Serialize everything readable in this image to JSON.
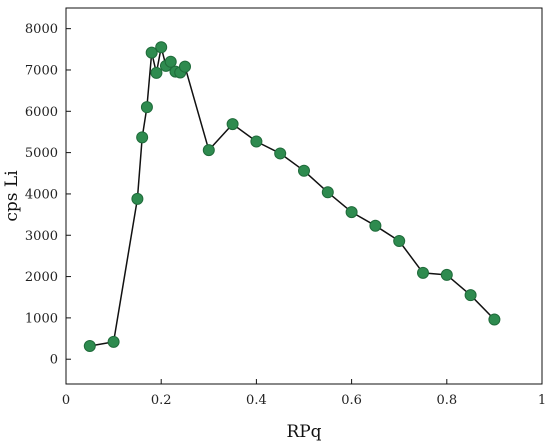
{
  "chart_data": {
    "type": "line",
    "title": "",
    "xlabel": "RPq",
    "ylabel": "cps Li",
    "xlim": [
      0,
      1
    ],
    "ylim": [
      -600,
      8500
    ],
    "x_ticks": [
      0,
      0.2,
      0.4,
      0.6,
      0.8,
      1
    ],
    "x_tick_labels": [
      "0",
      "0.2",
      "0.4",
      "0.6",
      "0.8",
      "1"
    ],
    "y_ticks": [
      0,
      1000,
      2000,
      3000,
      4000,
      5000,
      6000,
      7000,
      8000
    ],
    "y_tick_labels": [
      "0",
      "1000",
      "2000",
      "3000",
      "4000",
      "5000",
      "6000",
      "7000",
      "8000"
    ],
    "grid": false,
    "series": [
      {
        "x": [
          0.05,
          0.1,
          0.15,
          0.16,
          0.17,
          0.18,
          0.19,
          0.2,
          0.21,
          0.22,
          0.23,
          0.24,
          0.25,
          0.3,
          0.35,
          0.4,
          0.45,
          0.5,
          0.55,
          0.6,
          0.65,
          0.7,
          0.75,
          0.8,
          0.85,
          0.9
        ],
        "y": [
          320,
          420,
          3880,
          5370,
          6100,
          7420,
          6930,
          7550,
          7100,
          7200,
          6960,
          6940,
          7080,
          5060,
          5690,
          5270,
          4980,
          4560,
          4040,
          3560,
          3230,
          2860,
          2090,
          2040,
          1550,
          960
        ]
      }
    ],
    "colors": {
      "marker": "#2e8b4f",
      "marker_edge": "#1f6b3a",
      "line": "#111111",
      "axis": "#111111"
    }
  }
}
